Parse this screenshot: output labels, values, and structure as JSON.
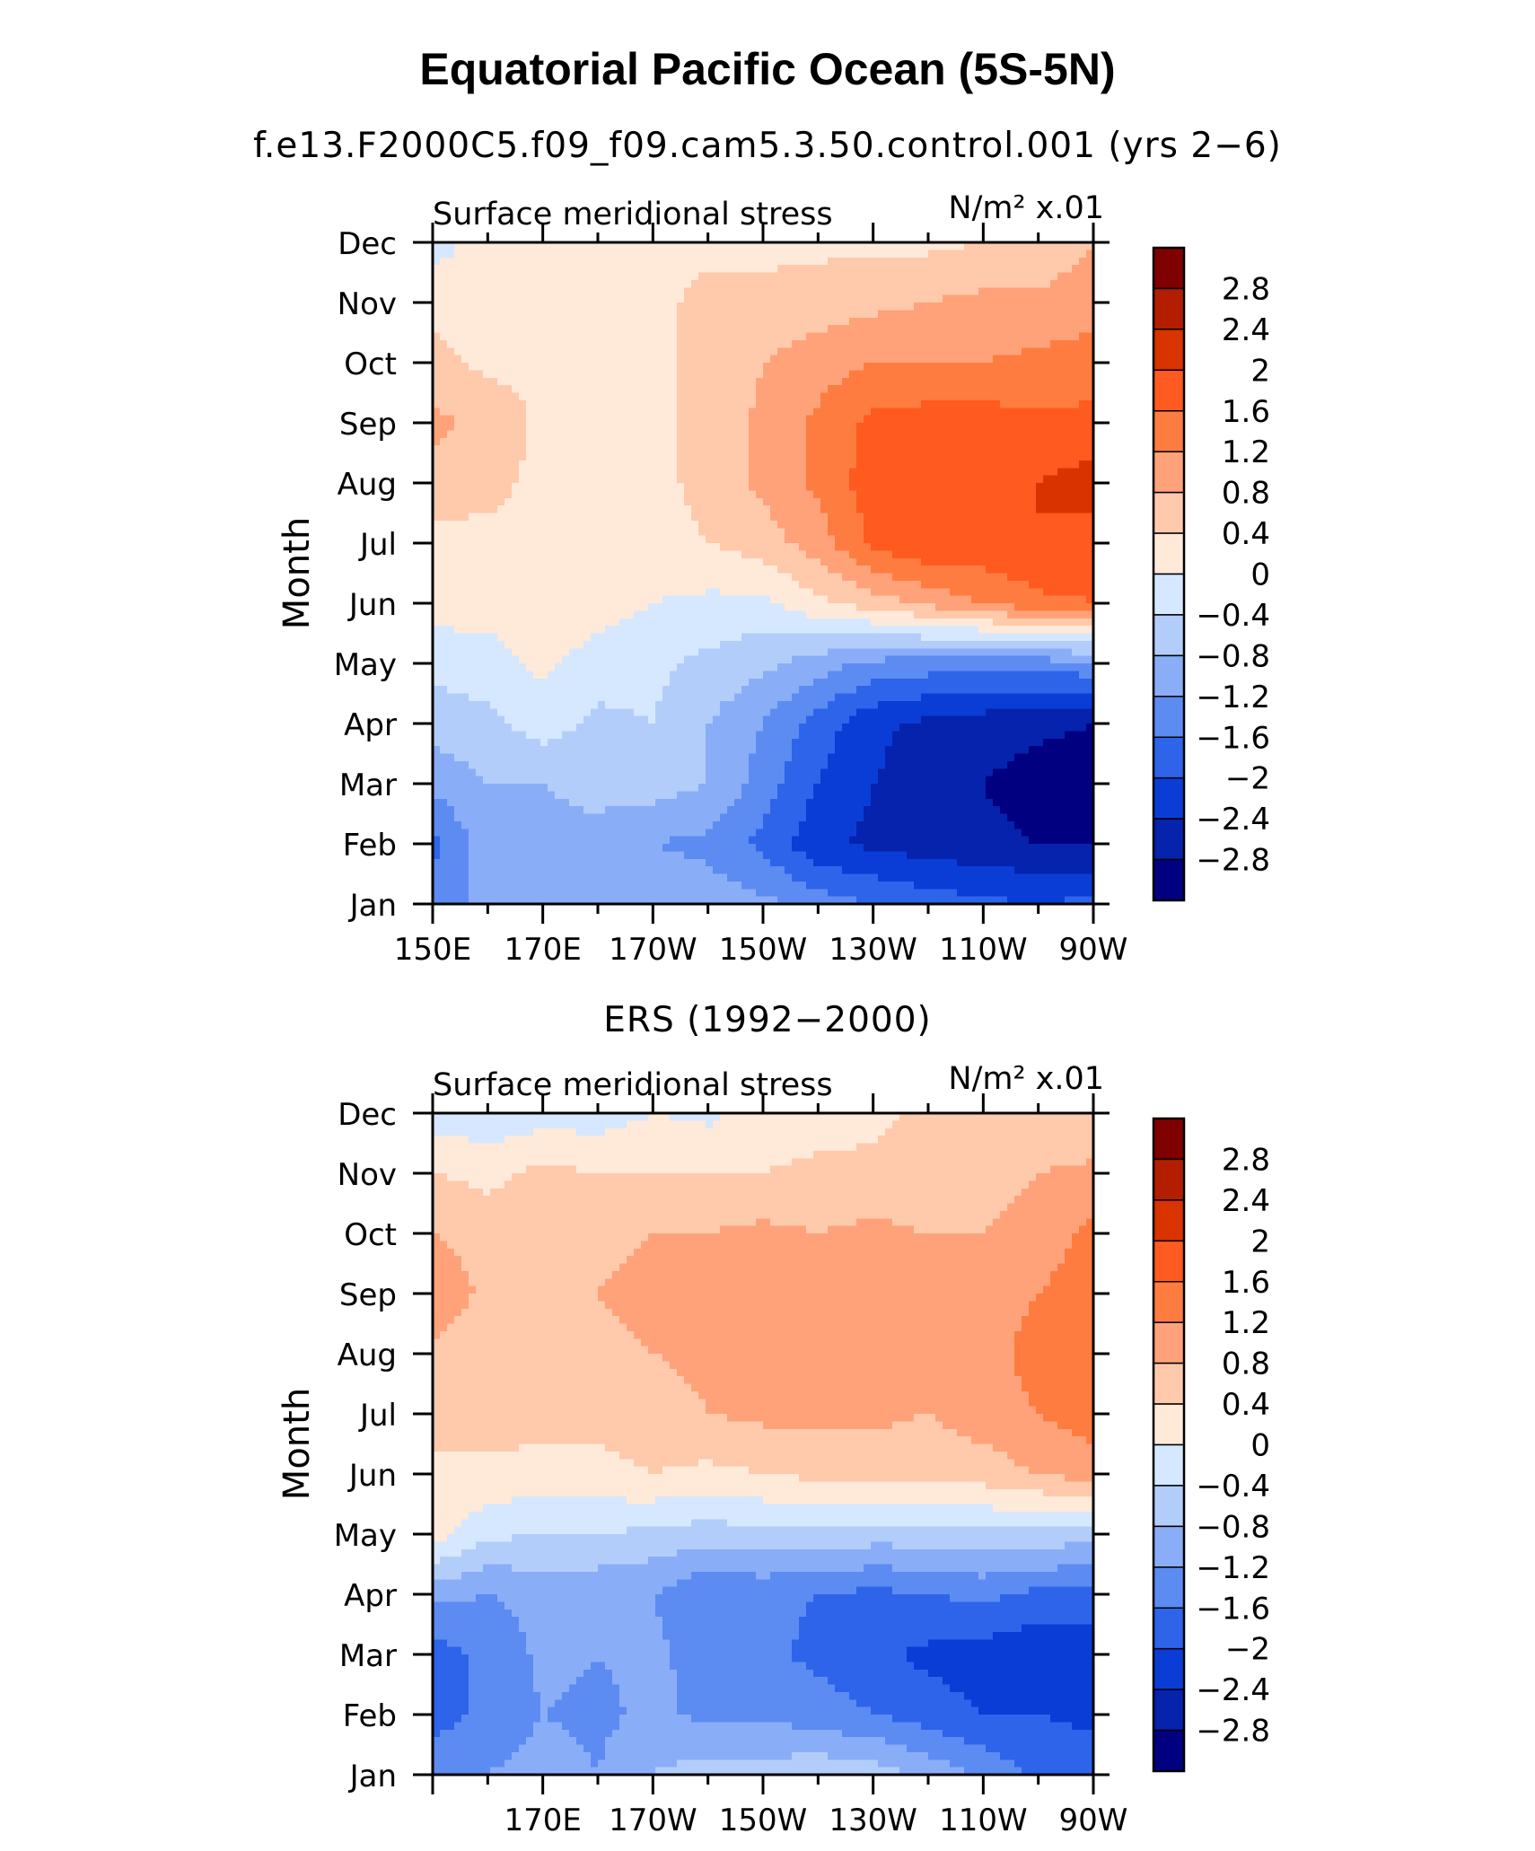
{
  "title": "Equatorial Pacific Ocean (5S-5N)",
  "panels": [
    {
      "subtitle": "f.e13.F2000C5.f09_f09.cam5.3.50.control.001 (yrs 2−6)",
      "left_label": "Surface meridional stress",
      "right_label": "N/m² x.01",
      "ylabel": "Month",
      "x_tick_labels": [
        "150E",
        "170E",
        "170W",
        "150W",
        "130W",
        "110W",
        "90W"
      ]
    },
    {
      "subtitle": "ERS (1992−2000)",
      "left_label": "Surface meridional stress",
      "right_label": "N/m² x.01",
      "ylabel": "Month",
      "x_tick_labels": [
        "",
        "170E",
        "170W",
        "150W",
        "130W",
        "110W",
        "90W"
      ]
    }
  ],
  "colorbar": {
    "labels": [
      "2.8",
      "2.4",
      "2",
      "1.6",
      "1.2",
      "0.8",
      "0.4",
      "0",
      "−0.4",
      "−0.8",
      "−1.2",
      "−1.6",
      "−2",
      "−2.4",
      "−2.8"
    ],
    "colors": [
      "#7f0000",
      "#b31e00",
      "#d93300",
      "#ff5a1f",
      "#ff7c40",
      "#ffa27a",
      "#ffc9ab",
      "#ffe9d9",
      "#d5e8ff",
      "#b3cdfb",
      "#8aadf7",
      "#5c8cf2",
      "#2e64ea",
      "#0a3dd6",
      "#0523ac",
      "#000080"
    ]
  },
  "chart_data": [
    {
      "type": "heatmap",
      "title": "Equatorial Pacific Ocean (5S-5N)",
      "subtitle": "f.e13.F2000C5.f09_f09.cam5.3.50.control.001 (yrs 2−6)",
      "variable": "Surface meridional stress",
      "units": "N/m² x.01",
      "ylabel": "Month",
      "x": [
        "150E",
        "160E",
        "170E",
        "180",
        "170W",
        "160W",
        "150W",
        "140W",
        "130W",
        "120W",
        "110W",
        "100W",
        "90W"
      ],
      "y": [
        "Jan",
        "Feb",
        "Mar",
        "Apr",
        "May",
        "Jun",
        "Jul",
        "Aug",
        "Sep",
        "Oct",
        "Nov",
        "Dec"
      ],
      "xlim": [
        "150E",
        "90W"
      ],
      "ylim": [
        "Jan",
        "Dec"
      ],
      "levels": [
        -2.8,
        -2.4,
        -2.0,
        -1.6,
        -1.2,
        -0.8,
        -0.4,
        0,
        0.4,
        0.8,
        1.2,
        1.6,
        2.0,
        2.4,
        2.8
      ],
      "z": [
        [
          -1.5,
          -1.0,
          -0.9,
          -0.9,
          -0.9,
          -1.0,
          -1.1,
          -1.4,
          -1.6,
          -1.8,
          -1.9,
          -2.0,
          -1.9
        ],
        [
          -1.7,
          -1.0,
          -0.9,
          -0.9,
          -1.2,
          -1.3,
          -1.7,
          -2.3,
          -2.5,
          -2.6,
          -2.7,
          -2.8,
          -2.8
        ],
        [
          -1.1,
          -0.8,
          -0.8,
          -0.7,
          -0.6,
          -0.8,
          -1.4,
          -2.0,
          -2.4,
          -2.6,
          -2.8,
          -3.0,
          -3.0
        ],
        [
          -0.6,
          -0.5,
          -0.2,
          -0.5,
          -0.4,
          -0.8,
          -1.2,
          -1.8,
          -2.3,
          -2.5,
          -2.6,
          -2.7,
          -2.8
        ],
        [
          -0.3,
          -0.2,
          0.1,
          -0.2,
          -0.3,
          -0.5,
          -0.7,
          -1.0,
          -1.3,
          -1.4,
          -1.5,
          -1.4,
          -1.3
        ],
        [
          0.2,
          0.2,
          0.3,
          0.2,
          0.0,
          -0.1,
          -0.1,
          0.3,
          0.6,
          0.9,
          1.2,
          1.5,
          1.6
        ],
        [
          0.2,
          0.3,
          0.3,
          0.3,
          0.3,
          0.4,
          0.6,
          1.0,
          1.7,
          2.0,
          1.9,
          2.0,
          1.8
        ],
        [
          0.7,
          0.5,
          0.3,
          0.3,
          0.3,
          0.5,
          0.9,
          1.3,
          1.8,
          1.9,
          1.9,
          2.0,
          2.2
        ],
        [
          0.9,
          0.7,
          0.3,
          0.3,
          0.3,
          0.5,
          0.9,
          1.3,
          1.7,
          1.8,
          1.8,
          1.7,
          1.7
        ],
        [
          0.5,
          0.3,
          0.3,
          0.3,
          0.3,
          0.5,
          0.8,
          1.0,
          1.2,
          1.2,
          1.2,
          1.3,
          1.4
        ],
        [
          0.3,
          0.3,
          0.3,
          0.3,
          0.3,
          0.5,
          0.5,
          0.6,
          0.7,
          0.8,
          0.9,
          0.9,
          1.0
        ],
        [
          -0.2,
          0.2,
          0.3,
          0.3,
          0.3,
          0.3,
          0.3,
          0.3,
          0.3,
          0.3,
          0.4,
          0.5,
          0.8
        ]
      ]
    },
    {
      "type": "heatmap",
      "subtitle": "ERS (1992−2000)",
      "variable": "Surface meridional stress",
      "units": "N/m² x.01",
      "ylabel": "Month",
      "x": [
        "150E",
        "160E",
        "170E",
        "180",
        "170W",
        "160W",
        "150W",
        "140W",
        "130W",
        "120W",
        "110W",
        "100W",
        "90W"
      ],
      "y": [
        "Jan",
        "Feb",
        "Mar",
        "Apr",
        "May",
        "Jun",
        "Jul",
        "Aug",
        "Sep",
        "Oct",
        "Nov",
        "Dec"
      ],
      "xlim": [
        "150E",
        "90W"
      ],
      "ylim": [
        "Jan",
        "Dec"
      ],
      "levels": [
        -2.8,
        -2.4,
        -2.0,
        -1.6,
        -1.2,
        -0.8,
        -0.4,
        0,
        0.4,
        0.8,
        1.2,
        1.6,
        2.0,
        2.4,
        2.8
      ],
      "z": [
        [
          -1.3,
          -1.2,
          -1.0,
          -1.2,
          -0.8,
          -0.6,
          -0.6,
          -0.5,
          -0.6,
          -0.9,
          -1.3,
          -1.7,
          -1.8
        ],
        [
          -1.8,
          -1.5,
          -1.2,
          -1.3,
          -1.1,
          -1.3,
          -1.3,
          -1.4,
          -1.6,
          -1.8,
          -2.0,
          -2.0,
          -2.1
        ],
        [
          -1.8,
          -1.5,
          -1.1,
          -1.2,
          -1.1,
          -1.4,
          -1.5,
          -1.7,
          -1.9,
          -2.1,
          -2.2,
          -2.3,
          -2.3
        ],
        [
          -1.1,
          -1.2,
          -1.1,
          -1.1,
          -1.2,
          -1.6,
          -1.5,
          -1.6,
          -1.7,
          -1.6,
          -1.5,
          -1.7,
          -1.7
        ],
        [
          0.2,
          -0.3,
          -0.4,
          -0.4,
          -0.5,
          -0.6,
          -0.5,
          -0.5,
          -0.6,
          -0.6,
          -0.5,
          -0.5,
          -0.7
        ],
        [
          0.3,
          0.3,
          0.2,
          0.3,
          0.4,
          0.3,
          0.4,
          0.5,
          0.5,
          0.5,
          0.6,
          0.8,
          1.0
        ],
        [
          0.6,
          0.6,
          0.6,
          0.5,
          0.6,
          0.8,
          0.9,
          0.9,
          0.9,
          0.8,
          1.0,
          1.2,
          1.4
        ],
        [
          0.7,
          0.5,
          0.6,
          0.6,
          0.8,
          0.9,
          1.0,
          1.0,
          1.0,
          0.9,
          1.0,
          1.4,
          1.4
        ],
        [
          1.1,
          0.7,
          0.6,
          0.8,
          1.0,
          0.9,
          1.0,
          1.0,
          1.0,
          0.9,
          0.9,
          1.2,
          1.4
        ],
        [
          0.8,
          0.6,
          0.5,
          0.6,
          0.8,
          0.8,
          0.9,
          0.8,
          0.9,
          0.8,
          0.8,
          1.0,
          1.3
        ],
        [
          0.4,
          0.3,
          0.5,
          0.4,
          0.4,
          0.4,
          0.4,
          0.5,
          0.5,
          0.5,
          0.6,
          0.8,
          0.9
        ],
        [
          -0.2,
          -0.3,
          -0.2,
          -0.2,
          0.0,
          -0.1,
          0.2,
          0.2,
          0.3,
          0.5,
          0.4,
          0.4,
          0.4
        ]
      ]
    }
  ]
}
